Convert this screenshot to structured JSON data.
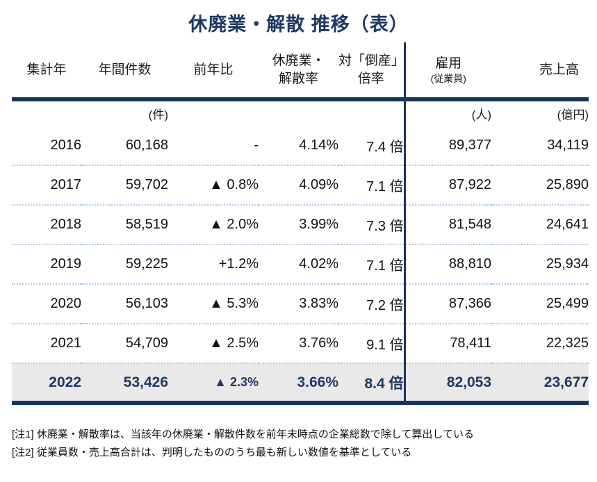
{
  "page_title": "休廃業・解散 推移（表）",
  "colors": {
    "navy_text": "#1f3864",
    "navy_line": "#17365d",
    "highlight_row_bg": "#e9e9e9",
    "row_separator_blue": "#b0c9e4",
    "body_text": "#111111"
  },
  "chart_data": {
    "type": "table",
    "title": "休廃業・解散 推移（表）",
    "columns": [
      {
        "line1": "集計年",
        "line2": ""
      },
      {
        "line1": "年間件数",
        "line2": ""
      },
      {
        "line1": "前年比",
        "line2": ""
      },
      {
        "line1": "休廃業・",
        "line2": "解散率"
      },
      {
        "line1": "対「倒産」",
        "line2": "倍率"
      },
      {
        "line1": "雇用",
        "line2": "(従業員)"
      },
      {
        "line1": "売上高",
        "line2": ""
      }
    ],
    "units_row": [
      "",
      "(件)",
      "",
      "",
      "",
      "(人)",
      "(億円)"
    ],
    "rows": [
      {
        "year": "2016",
        "annual_count": "60,168",
        "yoy": "-",
        "rate": "4.14%",
        "bankruptcy_ratio": "7.4 倍",
        "employees": "89,377",
        "sales": "34,119",
        "highlight": false
      },
      {
        "year": "2017",
        "annual_count": "59,702",
        "yoy": "▲ 0.8%",
        "rate": "4.09%",
        "bankruptcy_ratio": "7.1 倍",
        "employees": "87,922",
        "sales": "25,890",
        "highlight": false
      },
      {
        "year": "2018",
        "annual_count": "58,519",
        "yoy": "▲ 2.0%",
        "rate": "3.99%",
        "bankruptcy_ratio": "7.3 倍",
        "employees": "81,548",
        "sales": "24,641",
        "highlight": false
      },
      {
        "year": "2019",
        "annual_count": "59,225",
        "yoy": "+1.2%",
        "rate": "4.02%",
        "bankruptcy_ratio": "7.1 倍",
        "employees": "88,810",
        "sales": "25,934",
        "highlight": false
      },
      {
        "year": "2020",
        "annual_count": "56,103",
        "yoy": "▲ 5.3%",
        "rate": "3.83%",
        "bankruptcy_ratio": "7.2 倍",
        "employees": "87,366",
        "sales": "25,499",
        "highlight": false
      },
      {
        "year": "2021",
        "annual_count": "54,709",
        "yoy": "▲ 2.5%",
        "rate": "3.76%",
        "bankruptcy_ratio": "9.1 倍",
        "employees": "78,411",
        "sales": "22,325",
        "highlight": false
      },
      {
        "year": "2022",
        "annual_count": "53,426",
        "yoy": "▲ 2.3%",
        "rate": "3.66%",
        "bankruptcy_ratio": "8.4 倍",
        "employees": "82,053",
        "sales": "23,677",
        "highlight": true
      }
    ],
    "notes": [
      "[注1] 休廃業・解散率は、当該年の休廃業・解散件数を前年末時点の企業総数で除して算出している",
      "[注2] 従業員数・売上高合計は、判明したもののうち最も新しい数値を基準としている"
    ]
  }
}
